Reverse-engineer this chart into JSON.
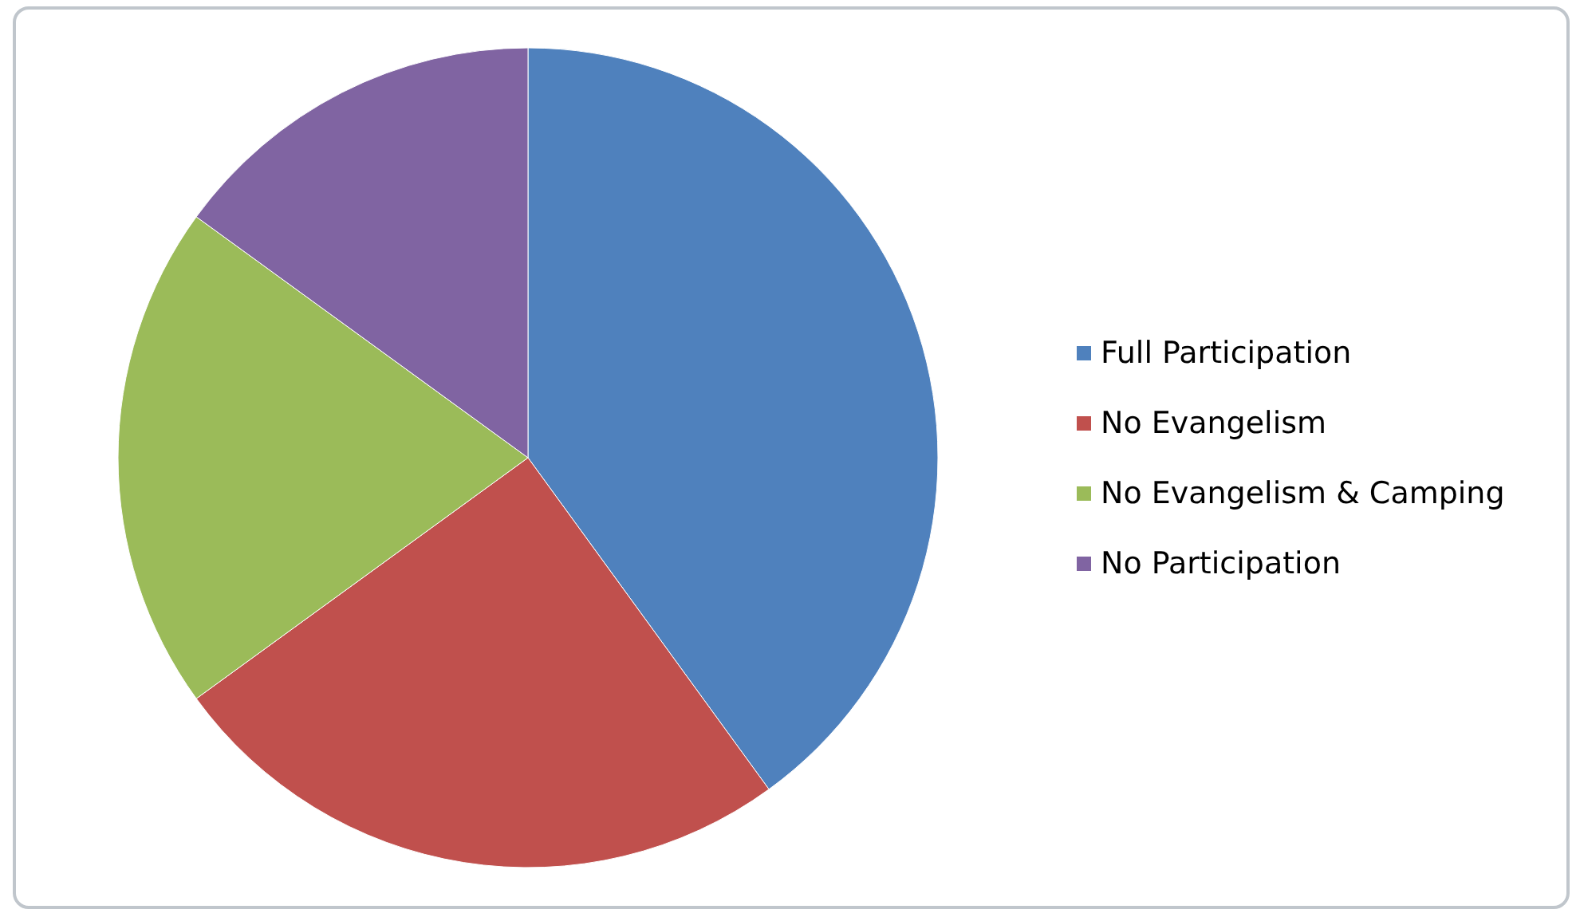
{
  "chart_data": {
    "type": "pie",
    "categories": [
      "Full Participation",
      "No Evangelism",
      "No Evangelism & Camping",
      "No Participation"
    ],
    "values": [
      40,
      25,
      20,
      15
    ],
    "colors": [
      "#4f81bd",
      "#c0504d",
      "#9bbb59",
      "#8064a2"
    ],
    "legend": "right"
  }
}
